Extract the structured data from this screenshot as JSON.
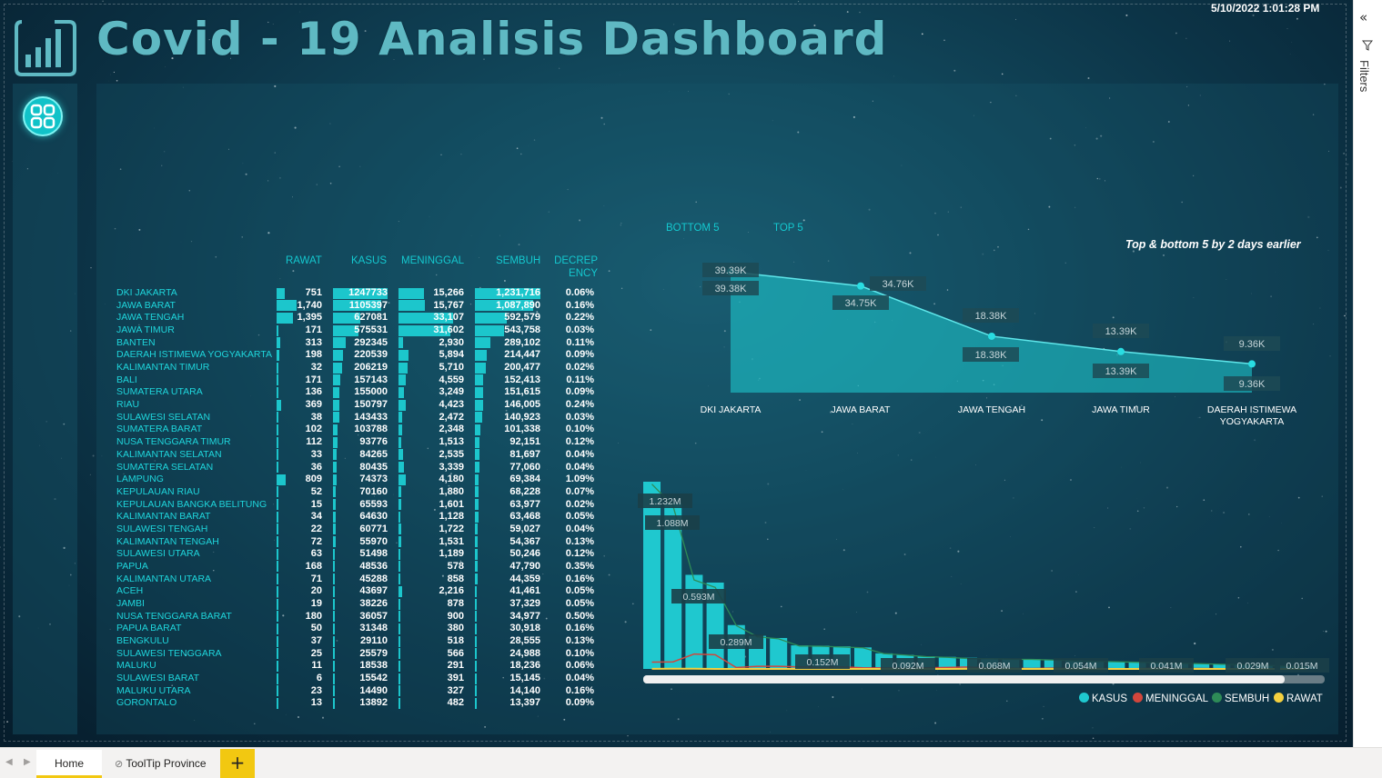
{
  "header": {
    "title": "Covid - 19 Analisis Dashboard",
    "datetime": "5/10/2022 1:01:28 PM"
  },
  "table": {
    "columns": [
      "RAWAT",
      "KASUS",
      "MENINGGAL",
      "SEMBUH",
      "DECREP ENCY"
    ],
    "rows": [
      {
        "province": "DKI JAKARTA",
        "rawat": "751",
        "kasus": "1247733",
        "meninggal": "15,266",
        "sembuh": "1,231,716",
        "decrepency": "0.06%"
      },
      {
        "province": "JAWA BARAT",
        "rawat": "1,740",
        "kasus": "1105397",
        "meninggal": "15,767",
        "sembuh": "1,087,890",
        "decrepency": "0.16%"
      },
      {
        "province": "JAWA TENGAH",
        "rawat": "1,395",
        "kasus": "627081",
        "meninggal": "33,107",
        "sembuh": "592,579",
        "decrepency": "0.22%"
      },
      {
        "province": "JAWA TIMUR",
        "rawat": "171",
        "kasus": "575531",
        "meninggal": "31,602",
        "sembuh": "543,758",
        "decrepency": "0.03%"
      },
      {
        "province": "BANTEN",
        "rawat": "313",
        "kasus": "292345",
        "meninggal": "2,930",
        "sembuh": "289,102",
        "decrepency": "0.11%"
      },
      {
        "province": "DAERAH ISTIMEWA YOGYAKARTA",
        "rawat": "198",
        "kasus": "220539",
        "meninggal": "5,894",
        "sembuh": "214,447",
        "decrepency": "0.09%"
      },
      {
        "province": "KALIMANTAN TIMUR",
        "rawat": "32",
        "kasus": "206219",
        "meninggal": "5,710",
        "sembuh": "200,477",
        "decrepency": "0.02%"
      },
      {
        "province": "BALI",
        "rawat": "171",
        "kasus": "157143",
        "meninggal": "4,559",
        "sembuh": "152,413",
        "decrepency": "0.11%"
      },
      {
        "province": "SUMATERA UTARA",
        "rawat": "136",
        "kasus": "155000",
        "meninggal": "3,249",
        "sembuh": "151,615",
        "decrepency": "0.09%"
      },
      {
        "province": "RIAU",
        "rawat": "369",
        "kasus": "150797",
        "meninggal": "4,423",
        "sembuh": "146,005",
        "decrepency": "0.24%"
      },
      {
        "province": "SULAWESI SELATAN",
        "rawat": "38",
        "kasus": "143433",
        "meninggal": "2,472",
        "sembuh": "140,923",
        "decrepency": "0.03%"
      },
      {
        "province": "SUMATERA BARAT",
        "rawat": "102",
        "kasus": "103788",
        "meninggal": "2,348",
        "sembuh": "101,338",
        "decrepency": "0.10%"
      },
      {
        "province": "NUSA TENGGARA TIMUR",
        "rawat": "112",
        "kasus": "93776",
        "meninggal": "1,513",
        "sembuh": "92,151",
        "decrepency": "0.12%"
      },
      {
        "province": "KALIMANTAN SELATAN",
        "rawat": "33",
        "kasus": "84265",
        "meninggal": "2,535",
        "sembuh": "81,697",
        "decrepency": "0.04%"
      },
      {
        "province": "SUMATERA SELATAN",
        "rawat": "36",
        "kasus": "80435",
        "meninggal": "3,339",
        "sembuh": "77,060",
        "decrepency": "0.04%"
      },
      {
        "province": "LAMPUNG",
        "rawat": "809",
        "kasus": "74373",
        "meninggal": "4,180",
        "sembuh": "69,384",
        "decrepency": "1.09%"
      },
      {
        "province": "KEPULAUAN RIAU",
        "rawat": "52",
        "kasus": "70160",
        "meninggal": "1,880",
        "sembuh": "68,228",
        "decrepency": "0.07%"
      },
      {
        "province": "KEPULAUAN BANGKA BELITUNG",
        "rawat": "15",
        "kasus": "65593",
        "meninggal": "1,601",
        "sembuh": "63,977",
        "decrepency": "0.02%"
      },
      {
        "province": "KALIMANTAN BARAT",
        "rawat": "34",
        "kasus": "64630",
        "meninggal": "1,128",
        "sembuh": "63,468",
        "decrepency": "0.05%"
      },
      {
        "province": "SULAWESI TENGAH",
        "rawat": "22",
        "kasus": "60771",
        "meninggal": "1,722",
        "sembuh": "59,027",
        "decrepency": "0.04%"
      },
      {
        "province": "KALIMANTAN TENGAH",
        "rawat": "72",
        "kasus": "55970",
        "meninggal": "1,531",
        "sembuh": "54,367",
        "decrepency": "0.13%"
      },
      {
        "province": "SULAWESI UTARA",
        "rawat": "63",
        "kasus": "51498",
        "meninggal": "1,189",
        "sembuh": "50,246",
        "decrepency": "0.12%"
      },
      {
        "province": "PAPUA",
        "rawat": "168",
        "kasus": "48536",
        "meninggal": "578",
        "sembuh": "47,790",
        "decrepency": "0.35%"
      },
      {
        "province": "KALIMANTAN UTARA",
        "rawat": "71",
        "kasus": "45288",
        "meninggal": "858",
        "sembuh": "44,359",
        "decrepency": "0.16%"
      },
      {
        "province": "ACEH",
        "rawat": "20",
        "kasus": "43697",
        "meninggal": "2,216",
        "sembuh": "41,461",
        "decrepency": "0.05%"
      },
      {
        "province": "JAMBI",
        "rawat": "19",
        "kasus": "38226",
        "meninggal": "878",
        "sembuh": "37,329",
        "decrepency": "0.05%"
      },
      {
        "province": "NUSA TENGGARA BARAT",
        "rawat": "180",
        "kasus": "36057",
        "meninggal": "900",
        "sembuh": "34,977",
        "decrepency": "0.50%"
      },
      {
        "province": "PAPUA BARAT",
        "rawat": "50",
        "kasus": "31348",
        "meninggal": "380",
        "sembuh": "30,918",
        "decrepency": "0.16%"
      },
      {
        "province": "BENGKULU",
        "rawat": "37",
        "kasus": "29110",
        "meninggal": "518",
        "sembuh": "28,555",
        "decrepency": "0.13%"
      },
      {
        "province": "SULAWESI TENGGARA",
        "rawat": "25",
        "kasus": "25579",
        "meninggal": "566",
        "sembuh": "24,988",
        "decrepency": "0.10%"
      },
      {
        "province": "MALUKU",
        "rawat": "11",
        "kasus": "18538",
        "meninggal": "291",
        "sembuh": "18,236",
        "decrepency": "0.06%"
      },
      {
        "province": "SULAWESI BARAT",
        "rawat": "6",
        "kasus": "15542",
        "meninggal": "391",
        "sembuh": "15,145",
        "decrepency": "0.04%"
      },
      {
        "province": "MALUKU UTARA",
        "rawat": "23",
        "kasus": "14490",
        "meninggal": "327",
        "sembuh": "14,140",
        "decrepency": "0.16%"
      },
      {
        "province": "GORONTALO",
        "rawat": "13",
        "kasus": "13892",
        "meninggal": "482",
        "sembuh": "13,397",
        "decrepency": "0.09%"
      }
    ]
  },
  "linechart": {
    "tab_bottom": "BOTTOM 5",
    "tab_top": "TOP 5",
    "title": "Top & bottom 5 by 2 days earlier"
  },
  "barchart": {
    "legend": [
      {
        "label": "KASUS",
        "color": "#1fc8cf"
      },
      {
        "label": "MENINGGAL",
        "color": "#d2463c"
      },
      {
        "label": "SEMBUH",
        "color": "#2e8b57"
      },
      {
        "label": "RAWAT",
        "color": "#f4d03f"
      }
    ]
  },
  "chart_data": [
    {
      "type": "area",
      "title": "Top & bottom 5 by 2 days earlier",
      "categories": [
        "DKI JAKARTA",
        "JAWA BARAT",
        "JAWA TENGAH",
        "JAWA TIMUR",
        "DAERAH ISTIMEWA YOGYAKARTA"
      ],
      "series": [
        {
          "values": [
            39390,
            34760,
            18380,
            13390,
            9360
          ],
          "labels": [
            "39.39K",
            "34.76K",
            "18.38K",
            "13.39K",
            "9.36K"
          ]
        },
        {
          "values": [
            39380,
            34750,
            18380,
            13390,
            9360
          ],
          "labels": [
            "39.38K",
            "34.75K",
            "18.38K",
            "13.39K",
            "9.36K"
          ]
        }
      ],
      "ylim": [
        0,
        45000
      ]
    },
    {
      "type": "bar",
      "series": [
        {
          "name": "KASUS",
          "values": [
            1247733,
            1105397,
            627081,
            575531,
            292345,
            220539,
            206219,
            157143,
            155000,
            150797,
            143433,
            103788,
            93776,
            84265,
            80435,
            74373,
            70160,
            65593,
            64630,
            60771,
            55970,
            51498,
            48536,
            45288,
            43697,
            38226,
            36057,
            31348,
            29110,
            25579,
            18538,
            15542,
            14490,
            13892
          ]
        },
        {
          "name": "MENINGGAL",
          "values": [
            15266,
            15767,
            33107,
            31602,
            2930,
            5894,
            5710,
            4559,
            3249,
            4423,
            2472,
            2348,
            1513,
            2535,
            3339,
            4180,
            1880,
            1601,
            1128,
            1722,
            1531,
            1189,
            578,
            858,
            2216,
            878,
            900,
            380,
            518,
            566,
            291,
            391,
            327,
            482
          ]
        },
        {
          "name": "SEMBUH",
          "values": [
            1231716,
            1087890,
            592579,
            543758,
            289102,
            214447,
            200477,
            152413,
            151615,
            146005,
            140923,
            101338,
            92151,
            81697,
            77060,
            69384,
            68228,
            63977,
            63468,
            59027,
            54367,
            50246,
            47790,
            44359,
            41461,
            37329,
            34977,
            30918,
            28555,
            24988,
            18236,
            15145,
            14140,
            13397
          ]
        },
        {
          "name": "RAWAT",
          "values": [
            751,
            1740,
            1395,
            171,
            313,
            198,
            32,
            171,
            136,
            369,
            38,
            102,
            112,
            33,
            36,
            809,
            52,
            15,
            34,
            22,
            72,
            63,
            168,
            71,
            20,
            19,
            180,
            50,
            37,
            25,
            11,
            6,
            23,
            13
          ]
        }
      ],
      "data_labels": [
        "1.232M",
        "1.088M",
        "0.593M",
        "0.289M",
        "0.152M",
        "0.092M",
        "0.068M",
        "0.054M",
        "0.041M",
        "0.029M",
        "0.015M"
      ],
      "ylim": [
        0,
        1300000
      ]
    }
  ],
  "filters": {
    "label": "Filters"
  },
  "tabs": {
    "home": "Home",
    "tooltip": "ToolTip Province",
    "add": "+"
  }
}
